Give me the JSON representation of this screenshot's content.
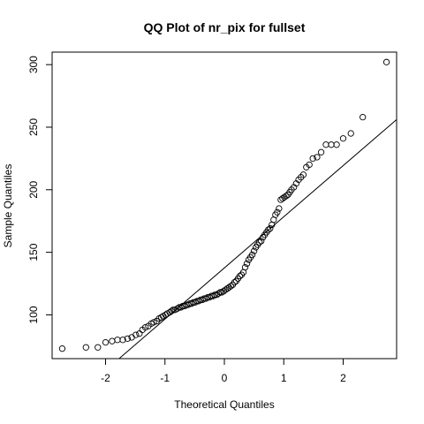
{
  "chart_data": {
    "type": "scatter",
    "title": "QQ Plot of nr_pix for fullset",
    "xlabel": "Theoretical Quantiles",
    "ylabel": "Sample Quantiles",
    "xlim": [
      -2.9,
      2.9
    ],
    "ylim": [
      65,
      310
    ],
    "x_ticks": [
      -2,
      -1,
      0,
      1,
      2
    ],
    "x_tick_labels": [
      "-2",
      "-1",
      "0",
      "1",
      "2"
    ],
    "y_ticks": [
      100,
      150,
      200,
      250,
      300
    ],
    "y_tick_labels": [
      "100",
      "150",
      "200",
      "250",
      "300"
    ],
    "grid": false,
    "legend": "none",
    "marker": "open-circle",
    "colors": {
      "points": "#000000",
      "line": "#000000",
      "axes": "#000000"
    },
    "reference_line": {
      "slope": 40.9,
      "intercept": 137.5
    },
    "points": [
      [
        -2.73,
        73
      ],
      [
        -2.33,
        74
      ],
      [
        -2.13,
        74
      ],
      [
        -2.0,
        78
      ],
      [
        -1.89,
        79
      ],
      [
        -1.8,
        80
      ],
      [
        -1.71,
        80
      ],
      [
        -1.63,
        81
      ],
      [
        -1.56,
        82
      ],
      [
        -1.49,
        84
      ],
      [
        -1.43,
        85
      ],
      [
        -1.38,
        88
      ],
      [
        -1.33,
        90
      ],
      [
        -1.28,
        91
      ],
      [
        -1.23,
        93
      ],
      [
        -1.19,
        94
      ],
      [
        -1.14,
        95
      ],
      [
        -1.1,
        97
      ],
      [
        -1.06,
        98
      ],
      [
        -1.03,
        99
      ],
      [
        -0.99,
        100
      ],
      [
        -0.96,
        101
      ],
      [
        -0.92,
        102
      ],
      [
        -0.89,
        103
      ],
      [
        -0.86,
        104
      ],
      [
        -0.83,
        104
      ],
      [
        -0.79,
        105
      ],
      [
        -0.76,
        106
      ],
      [
        -0.73,
        106
      ],
      [
        -0.7,
        107
      ],
      [
        -0.67,
        107
      ],
      [
        -0.64,
        108
      ],
      [
        -0.61,
        108
      ],
      [
        -0.58,
        109
      ],
      [
        -0.55,
        109
      ],
      [
        -0.52,
        110
      ],
      [
        -0.49,
        110
      ],
      [
        -0.46,
        111
      ],
      [
        -0.43,
        111
      ],
      [
        -0.4,
        112
      ],
      [
        -0.37,
        112
      ],
      [
        -0.34,
        113
      ],
      [
        -0.31,
        113
      ],
      [
        -0.28,
        114
      ],
      [
        -0.25,
        114
      ],
      [
        -0.22,
        115
      ],
      [
        -0.19,
        115
      ],
      [
        -0.16,
        116
      ],
      [
        -0.13,
        116
      ],
      [
        -0.1,
        117
      ],
      [
        -0.07,
        118
      ],
      [
        -0.04,
        118
      ],
      [
        -0.01,
        119
      ],
      [
        0.02,
        120
      ],
      [
        0.05,
        121
      ],
      [
        0.08,
        122
      ],
      [
        0.11,
        123
      ],
      [
        0.14,
        124
      ],
      [
        0.17,
        126
      ],
      [
        0.2,
        127
      ],
      [
        0.23,
        129
      ],
      [
        0.26,
        131
      ],
      [
        0.29,
        132
      ],
      [
        0.32,
        134
      ],
      [
        0.35,
        138
      ],
      [
        0.38,
        141
      ],
      [
        0.41,
        144
      ],
      [
        0.44,
        146
      ],
      [
        0.47,
        148
      ],
      [
        0.5,
        151
      ],
      [
        0.53,
        154
      ],
      [
        0.56,
        156
      ],
      [
        0.59,
        158
      ],
      [
        0.62,
        159
      ],
      [
        0.65,
        162
      ],
      [
        0.68,
        164
      ],
      [
        0.71,
        166
      ],
      [
        0.74,
        168
      ],
      [
        0.77,
        169
      ],
      [
        0.8,
        172
      ],
      [
        0.83,
        176
      ],
      [
        0.86,
        180
      ],
      [
        0.89,
        182
      ],
      [
        0.92,
        185
      ],
      [
        0.95,
        192
      ],
      [
        0.98,
        193
      ],
      [
        1.01,
        194
      ],
      [
        1.04,
        195
      ],
      [
        1.07,
        196
      ],
      [
        1.1,
        198
      ],
      [
        1.13,
        200
      ],
      [
        1.17,
        202
      ],
      [
        1.21,
        205
      ],
      [
        1.25,
        208
      ],
      [
        1.29,
        210
      ],
      [
        1.33,
        212
      ],
      [
        1.38,
        218
      ],
      [
        1.43,
        220
      ],
      [
        1.49,
        225
      ],
      [
        1.56,
        226
      ],
      [
        1.63,
        230
      ],
      [
        1.71,
        236
      ],
      [
        1.8,
        236
      ],
      [
        1.89,
        236
      ],
      [
        2.0,
        241
      ],
      [
        2.13,
        245
      ],
      [
        2.33,
        258
      ],
      [
        2.73,
        302
      ]
    ]
  }
}
